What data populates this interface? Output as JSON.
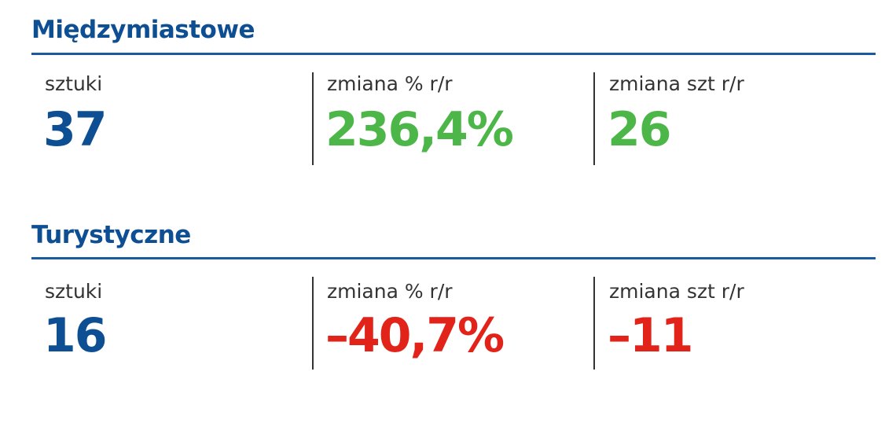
{
  "colors": {
    "title": "#0d4f92",
    "count": "#0d4f92",
    "positive": "#4cb648",
    "negative": "#e2231a"
  },
  "sections": [
    {
      "title": "Międzymiastowe",
      "count_label": "sztuki",
      "count": "37",
      "pct_label": "zmiana % r/r",
      "pct": "236,4%",
      "diff_label": "zmiana szt r/r",
      "diff": "26",
      "trend": "positive"
    },
    {
      "title": "Turystyczne",
      "count_label": "sztuki",
      "count": "16",
      "pct_label": "zmiana % r/r",
      "pct": "–40,7%",
      "diff_label": "zmiana szt r/r",
      "diff": "–11",
      "trend": "negative"
    }
  ]
}
